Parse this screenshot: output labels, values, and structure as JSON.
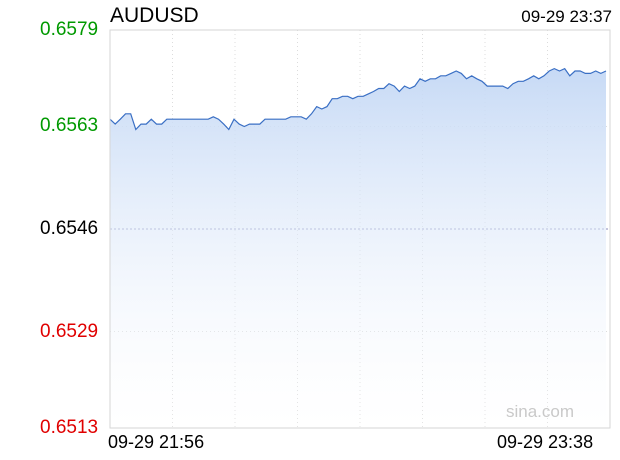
{
  "header": {
    "symbol": "AUDUSD",
    "timestamp": "09-29 23:37"
  },
  "watermark": "sina.com",
  "colors": {
    "up": "#009900",
    "down": "#e00000",
    "neutral": "#000000",
    "line": "#3a6fc4"
  },
  "chart_data": {
    "type": "area",
    "title": "AUDUSD",
    "y_tick_labels": [
      {
        "label": "0.6579",
        "value": 0.6579,
        "tone": "up"
      },
      {
        "label": "0.6563",
        "value": 0.6563,
        "tone": "up"
      },
      {
        "label": "0.6546",
        "value": 0.6546,
        "tone": "neutral"
      },
      {
        "label": "0.6529",
        "value": 0.6529,
        "tone": "down"
      },
      {
        "label": "0.6513",
        "value": 0.6513,
        "tone": "down"
      }
    ],
    "x_tick_labels": [
      "09-29 21:56",
      "09-29 23:38"
    ],
    "ylim": [
      0.6513,
      0.6579
    ],
    "reference_value": 0.6546,
    "grid": true,
    "values": [
      0.65642,
      0.65634,
      0.65642,
      0.65651,
      0.65651,
      0.65625,
      0.65634,
      0.65634,
      0.65642,
      0.65634,
      0.65634,
      0.65642,
      0.65642,
      0.65642,
      0.65642,
      0.65642,
      0.65642,
      0.65642,
      0.65642,
      0.65642,
      0.65646,
      0.65642,
      0.65634,
      0.65625,
      0.65642,
      0.65634,
      0.6563,
      0.65634,
      0.65634,
      0.65634,
      0.65642,
      0.65642,
      0.65642,
      0.65642,
      0.65642,
      0.65646,
      0.65646,
      0.65646,
      0.65642,
      0.65651,
      0.65663,
      0.65659,
      0.65663,
      0.65676,
      0.65676,
      0.6568,
      0.6568,
      0.65676,
      0.6568,
      0.6568,
      0.65684,
      0.65688,
      0.65693,
      0.65693,
      0.65701,
      0.65697,
      0.65688,
      0.65697,
      0.65693,
      0.65697,
      0.65709,
      0.65705,
      0.65709,
      0.65709,
      0.65714,
      0.65714,
      0.65718,
      0.65722,
      0.65718,
      0.65709,
      0.65714,
      0.65709,
      0.65705,
      0.65697,
      0.65697,
      0.65697,
      0.65697,
      0.65693,
      0.65701,
      0.65705,
      0.65705,
      0.65709,
      0.65714,
      0.65709,
      0.65714,
      0.65722,
      0.65726,
      0.65722,
      0.65726,
      0.65714,
      0.65722,
      0.65722,
      0.65718,
      0.65718,
      0.65722,
      0.65718,
      0.65722
    ]
  }
}
